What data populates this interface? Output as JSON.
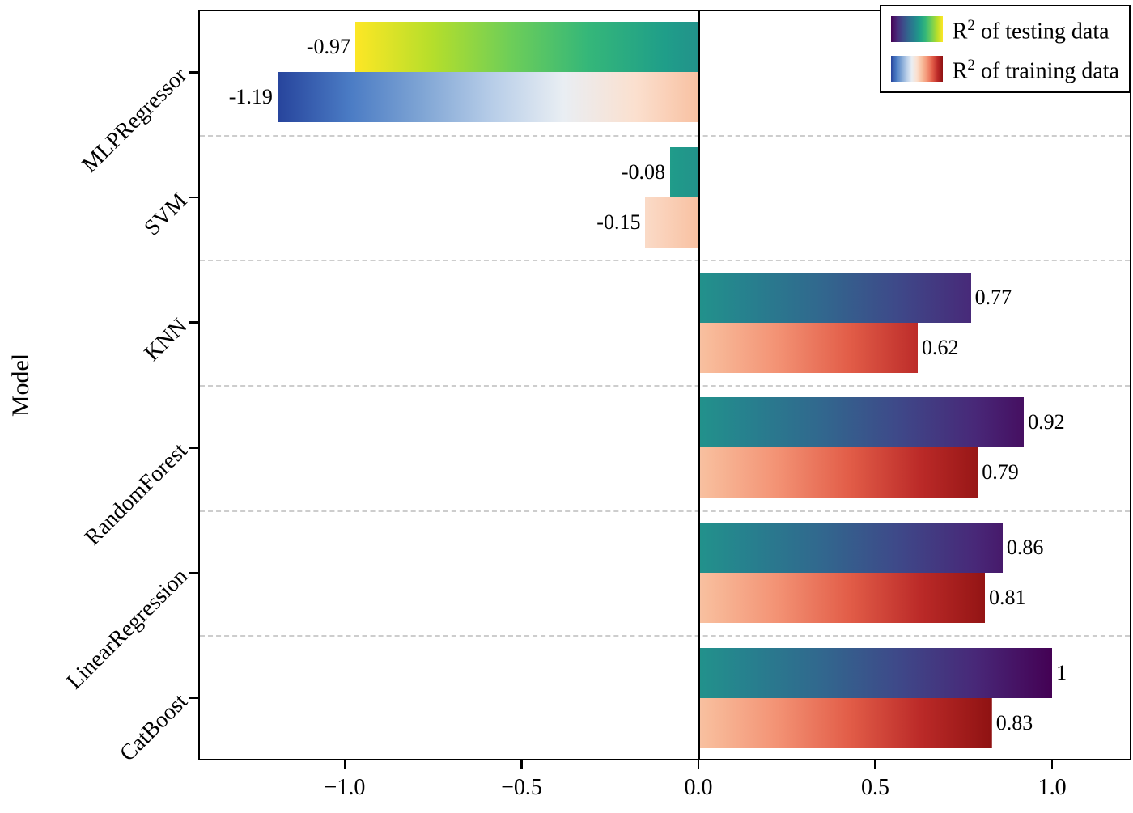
{
  "colors": {
    "background": "#ffffff",
    "axis": "#000000",
    "grid": "#cdcdcd",
    "text": "#000000"
  },
  "chart_data": {
    "type": "bar",
    "orientation": "horizontal",
    "ylabel": "Model",
    "categories": [
      "MLPRegressor",
      "SVM",
      "KNN",
      "RandomForest",
      "LinearRegression",
      "CatBoost"
    ],
    "series": [
      {
        "name": "R² of testing data",
        "values": [
          -0.97,
          -0.08,
          0.77,
          0.92,
          0.86,
          1
        ],
        "labels": [
          "-0.97",
          "-0.08",
          "0.77",
          "0.92",
          "0.86",
          "1"
        ],
        "colormap": "viridis reversed along value (yellow at most-negative tip, teal at 0, dark purple at +1)"
      },
      {
        "name": "R² of training data",
        "values": [
          -1.19,
          -0.15,
          0.62,
          0.79,
          0.81,
          0.83
        ],
        "labels": [
          "-1.19",
          "-0.15",
          "0.62",
          "0.79",
          "0.81",
          "0.83"
        ],
        "colormap": "dark blue at most-negative tip, white/peach at 0, dark red at positive tip"
      }
    ],
    "xlim": [
      -1.414,
      1.224
    ],
    "xticks": {
      "values": [
        -1,
        -0.5,
        0,
        0.5,
        1
      ],
      "labels": [
        "−1.0",
        "−0.5",
        "0.0",
        "0.5",
        "1.0"
      ]
    },
    "grid": "horizontal dashed separators between category groups",
    "legend_position": "upper right"
  },
  "colormaps": {
    "testing_value_ramp": [
      "#fde725",
      "#b5de2b",
      "#6ece58",
      "#35b779",
      "#1f9e89",
      "#26828e",
      "#31688e",
      "#3e4989",
      "#482878",
      "#440154"
    ],
    "training_value_ramp": [
      "#27449c",
      "#4a7bc4",
      "#7ea4d4",
      "#b7cde8",
      "#e9eef3",
      "#fbe0cf",
      "#f8bd9c",
      "#f39274",
      "#e25d48",
      "#bb2a28",
      "#8f1212"
    ]
  },
  "legend": {
    "items": [
      {
        "base": "R",
        "sup": "2",
        "rest": " of testing data",
        "swatch": [
          "#440154",
          "#482878",
          "#3e4989",
          "#31688e",
          "#26828e",
          "#1f9e89",
          "#35b779",
          "#6ece58",
          "#b5de2b",
          "#fde725"
        ]
      },
      {
        "base": "R",
        "sup": "2",
        "rest": " of training data",
        "swatch": [
          "#27449c",
          "#4a7bc4",
          "#7ea4d4",
          "#b7cde8",
          "#e9eef3",
          "#fbe0cf",
          "#f8bd9c",
          "#f39274",
          "#e25d48",
          "#bb2a28",
          "#8f1212"
        ]
      }
    ]
  }
}
